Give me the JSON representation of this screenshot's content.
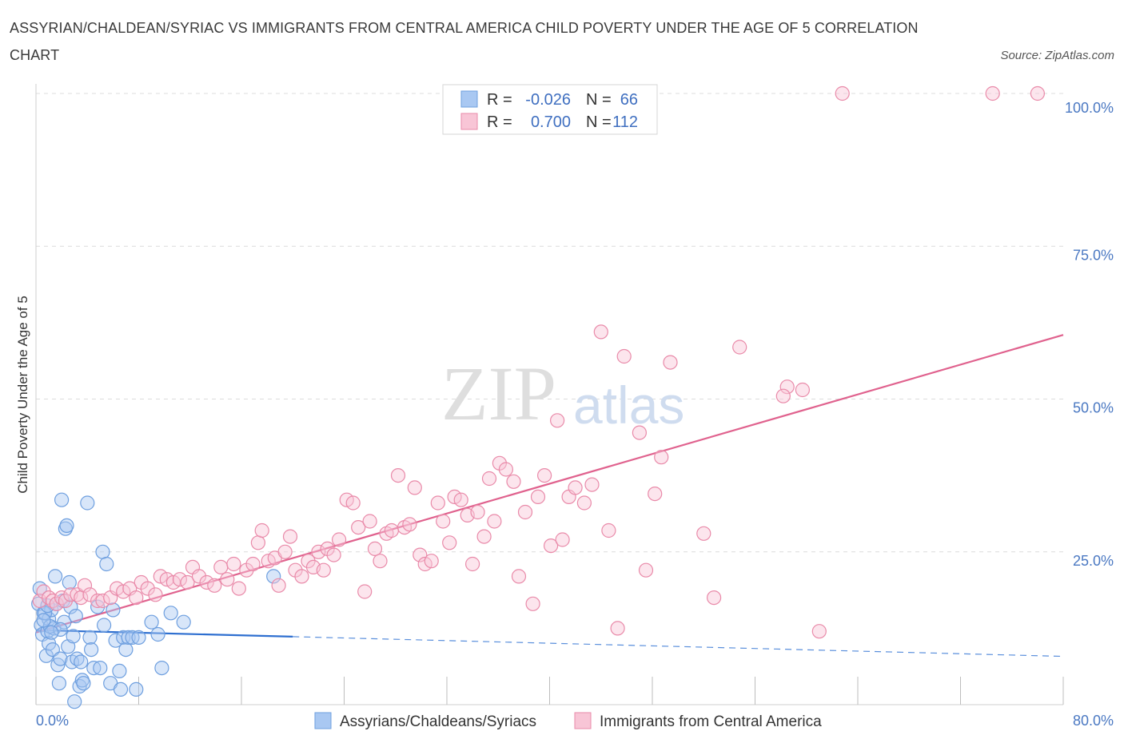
{
  "header": {
    "title": "ASSYRIAN/CHALDEAN/SYRIAC VS IMMIGRANTS FROM CENTRAL AMERICA CHILD POVERTY UNDER THE AGE OF 5 CORRELATION CHART",
    "source": "Source: ZipAtlas.com"
  },
  "watermark": {
    "zip": "ZIP",
    "atlas": "atlas"
  },
  "legend_top": {
    "rows": [
      {
        "r_label": "R =",
        "r_value": "-0.026",
        "n_label": "N =",
        "n_value": "66",
        "color": "#a9c8f2",
        "stroke": "#6e9fdf"
      },
      {
        "r_label": "R =",
        "r_value": "0.700",
        "n_label": "N =",
        "n_value": "112",
        "color": "#f8c5d6",
        "stroke": "#e98aa9"
      }
    ]
  },
  "legend_bottom": {
    "items": [
      {
        "label": "Assyrians/Chaldeans/Syriacs",
        "color": "#a9c8f2",
        "stroke": "#6e9fdf"
      },
      {
        "label": "Immigrants from Central America",
        "color": "#f8c5d6",
        "stroke": "#e98aa9"
      }
    ]
  },
  "chart_data": {
    "type": "scatter",
    "title": "ASSYRIAN/CHALDEAN/SYRIAC VS IMMIGRANTS FROM CENTRAL AMERICA CHILD POVERTY UNDER THE AGE OF 5 CORRELATION CHART",
    "xlabel": "",
    "ylabel": "Child Poverty Under the Age of 5",
    "xlim": [
      0,
      80
    ],
    "ylim": [
      0,
      100
    ],
    "x_tick_labels": [
      "0.0%",
      "80.0%"
    ],
    "y_ticks": [
      25,
      50,
      75,
      100
    ],
    "y_tick_labels": [
      "25.0%",
      "50.0%",
      "75.0%",
      "100.0%"
    ],
    "grid": true,
    "legend_position": "top-center",
    "series": [
      {
        "name": "Assyrians/Chaldeans/Syriacs",
        "color": "#6e9fdf",
        "fill": "#a9c8f2",
        "R": -0.026,
        "N": 66,
        "trend": {
          "x0": 0,
          "y0": 12.2,
          "x1": 80,
          "y1": 7.9,
          "solid_until_x": 20
        },
        "points": [
          [
            0.2,
            16.5
          ],
          [
            0.4,
            13
          ],
          [
            0.5,
            11.5
          ],
          [
            0.6,
            15
          ],
          [
            0.8,
            8
          ],
          [
            0.9,
            12
          ],
          [
            1.0,
            14
          ],
          [
            1.0,
            10
          ],
          [
            1.2,
            15.5
          ],
          [
            1.3,
            9
          ],
          [
            1.4,
            12.5
          ],
          [
            1.5,
            21
          ],
          [
            1.6,
            16.5
          ],
          [
            1.7,
            6.5
          ],
          [
            1.8,
            3.5
          ],
          [
            1.9,
            7.5
          ],
          [
            2.0,
            33.5
          ],
          [
            2.1,
            17
          ],
          [
            2.2,
            13.5
          ],
          [
            2.3,
            28.8
          ],
          [
            2.4,
            29.3
          ],
          [
            2.5,
            9.5
          ],
          [
            2.6,
            20
          ],
          [
            2.7,
            16
          ],
          [
            2.8,
            7
          ],
          [
            3.0,
            0.5
          ],
          [
            3.1,
            14.5
          ],
          [
            3.2,
            7.5
          ],
          [
            3.4,
            3
          ],
          [
            3.5,
            7
          ],
          [
            3.6,
            4
          ],
          [
            3.7,
            3.5
          ],
          [
            4.0,
            33
          ],
          [
            4.2,
            11
          ],
          [
            4.3,
            9
          ],
          [
            4.5,
            6
          ],
          [
            4.8,
            16
          ],
          [
            5.0,
            6
          ],
          [
            5.2,
            25
          ],
          [
            5.3,
            13
          ],
          [
            5.5,
            23
          ],
          [
            5.8,
            3.5
          ],
          [
            6.0,
            15.5
          ],
          [
            6.2,
            10.5
          ],
          [
            6.5,
            5.5
          ],
          [
            6.6,
            2.5
          ],
          [
            6.8,
            11
          ],
          [
            7.0,
            9
          ],
          [
            7.2,
            11
          ],
          [
            7.5,
            11
          ],
          [
            7.8,
            2.5
          ],
          [
            8.0,
            11
          ],
          [
            9.0,
            13.5
          ],
          [
            9.5,
            11.5
          ],
          [
            9.8,
            6
          ],
          [
            10.5,
            15
          ],
          [
            11.5,
            13.5
          ],
          [
            18.5,
            21
          ],
          [
            0.3,
            19
          ],
          [
            0.7,
            15
          ],
          [
            1.1,
            12.8
          ],
          [
            1.9,
            12.3
          ],
          [
            1.2,
            11.8
          ],
          [
            0.6,
            13.8
          ],
          [
            2.9,
            11.2
          ],
          [
            0.9,
            16.2
          ]
        ]
      },
      {
        "name": "Immigrants from Central America",
        "color": "#e98aa9",
        "fill": "#f8c5d6",
        "R": 0.7,
        "N": 112,
        "trend": {
          "x0": 0,
          "y0": 11.8,
          "x1": 80,
          "y1": 60.5
        },
        "points": [
          [
            0.3,
            17
          ],
          [
            0.6,
            18.5
          ],
          [
            1.0,
            17.5
          ],
          [
            1.3,
            17
          ],
          [
            1.6,
            16.5
          ],
          [
            2.0,
            17.5
          ],
          [
            2.3,
            17
          ],
          [
            2.7,
            18
          ],
          [
            3.2,
            18
          ],
          [
            3.5,
            17.5
          ],
          [
            3.8,
            19.5
          ],
          [
            4.2,
            18
          ],
          [
            4.8,
            17
          ],
          [
            5.2,
            17
          ],
          [
            5.8,
            17.5
          ],
          [
            6.3,
            19
          ],
          [
            6.8,
            18.5
          ],
          [
            7.3,
            19
          ],
          [
            7.8,
            17.5
          ],
          [
            8.2,
            20
          ],
          [
            8.7,
            19
          ],
          [
            9.3,
            18
          ],
          [
            9.7,
            21
          ],
          [
            10.2,
            20.5
          ],
          [
            10.7,
            20
          ],
          [
            11.2,
            20.5
          ],
          [
            11.8,
            20
          ],
          [
            12.2,
            22.5
          ],
          [
            12.7,
            21
          ],
          [
            13.3,
            20
          ],
          [
            13.9,
            19.5
          ],
          [
            14.4,
            22.5
          ],
          [
            14.9,
            20.5
          ],
          [
            15.4,
            23
          ],
          [
            15.8,
            19
          ],
          [
            16.4,
            22
          ],
          [
            16.9,
            23
          ],
          [
            17.3,
            26.5
          ],
          [
            17.6,
            28.5
          ],
          [
            18.1,
            23.5
          ],
          [
            18.6,
            24
          ],
          [
            18.9,
            19.5
          ],
          [
            19.4,
            25
          ],
          [
            19.8,
            27.5
          ],
          [
            20.2,
            22
          ],
          [
            20.7,
            21
          ],
          [
            21.2,
            23.5
          ],
          [
            21.6,
            22.5
          ],
          [
            22.0,
            25
          ],
          [
            22.4,
            22
          ],
          [
            22.7,
            25.5
          ],
          [
            23.2,
            24.5
          ],
          [
            23.6,
            27
          ],
          [
            24.2,
            33.5
          ],
          [
            24.7,
            33
          ],
          [
            25.1,
            29
          ],
          [
            25.6,
            18.5
          ],
          [
            26.0,
            30
          ],
          [
            26.4,
            25.5
          ],
          [
            26.8,
            23.5
          ],
          [
            27.3,
            28
          ],
          [
            27.7,
            28.5
          ],
          [
            28.2,
            37.5
          ],
          [
            28.7,
            29
          ],
          [
            29.1,
            29.5
          ],
          [
            29.5,
            35.5
          ],
          [
            29.9,
            24.5
          ],
          [
            30.3,
            23
          ],
          [
            30.8,
            23.5
          ],
          [
            31.3,
            33
          ],
          [
            31.7,
            30
          ],
          [
            32.2,
            26.5
          ],
          [
            32.6,
            34
          ],
          [
            33.1,
            33.5
          ],
          [
            33.6,
            31
          ],
          [
            34.0,
            23
          ],
          [
            34.4,
            31.5
          ],
          [
            34.9,
            27.5
          ],
          [
            35.3,
            37
          ],
          [
            35.7,
            30
          ],
          [
            36.1,
            39.5
          ],
          [
            36.6,
            38.5
          ],
          [
            37.2,
            36.5
          ],
          [
            37.6,
            21
          ],
          [
            38.1,
            31.5
          ],
          [
            38.7,
            16.5
          ],
          [
            39.1,
            34
          ],
          [
            39.6,
            37.5
          ],
          [
            40.1,
            26
          ],
          [
            40.6,
            46.5
          ],
          [
            41.0,
            27
          ],
          [
            41.5,
            34
          ],
          [
            42.0,
            35.5
          ],
          [
            42.7,
            33
          ],
          [
            43.3,
            36
          ],
          [
            44.0,
            61
          ],
          [
            45.3,
            12.5
          ],
          [
            45.8,
            57
          ],
          [
            47.0,
            44.5
          ],
          [
            47.5,
            22
          ],
          [
            48.2,
            34.5
          ],
          [
            48.7,
            40.5
          ],
          [
            49.4,
            56
          ],
          [
            52.0,
            28
          ],
          [
            52.8,
            17.5
          ],
          [
            54.8,
            58.5
          ],
          [
            58.5,
            52
          ],
          [
            59.7,
            51.5
          ],
          [
            61.0,
            12
          ],
          [
            58.2,
            50.5
          ],
          [
            62.8,
            100
          ],
          [
            74.5,
            100
          ],
          [
            78.0,
            100
          ],
          [
            44.6,
            28.5
          ]
        ]
      }
    ]
  }
}
